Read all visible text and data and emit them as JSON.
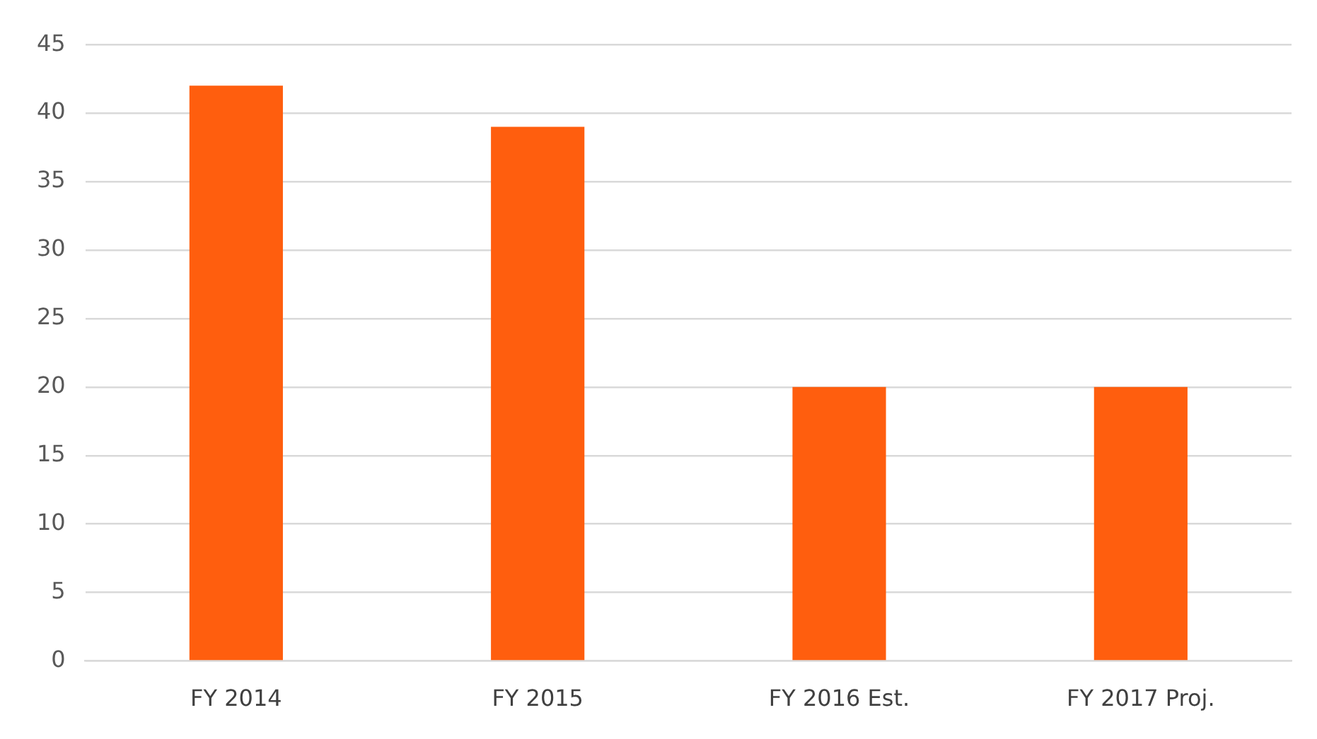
{
  "chart_data": {
    "type": "bar",
    "categories": [
      "FY 2014",
      "FY 2015",
      "FY 2016 Est.",
      "FY 2017 Proj."
    ],
    "values": [
      42,
      39,
      20,
      20
    ],
    "color": "#ff5e0e",
    "ylim": [
      0,
      45
    ],
    "yticks": [
      0,
      5,
      10,
      15,
      20,
      25,
      30,
      35,
      40,
      45
    ],
    "grid": "y",
    "legend": false
  }
}
